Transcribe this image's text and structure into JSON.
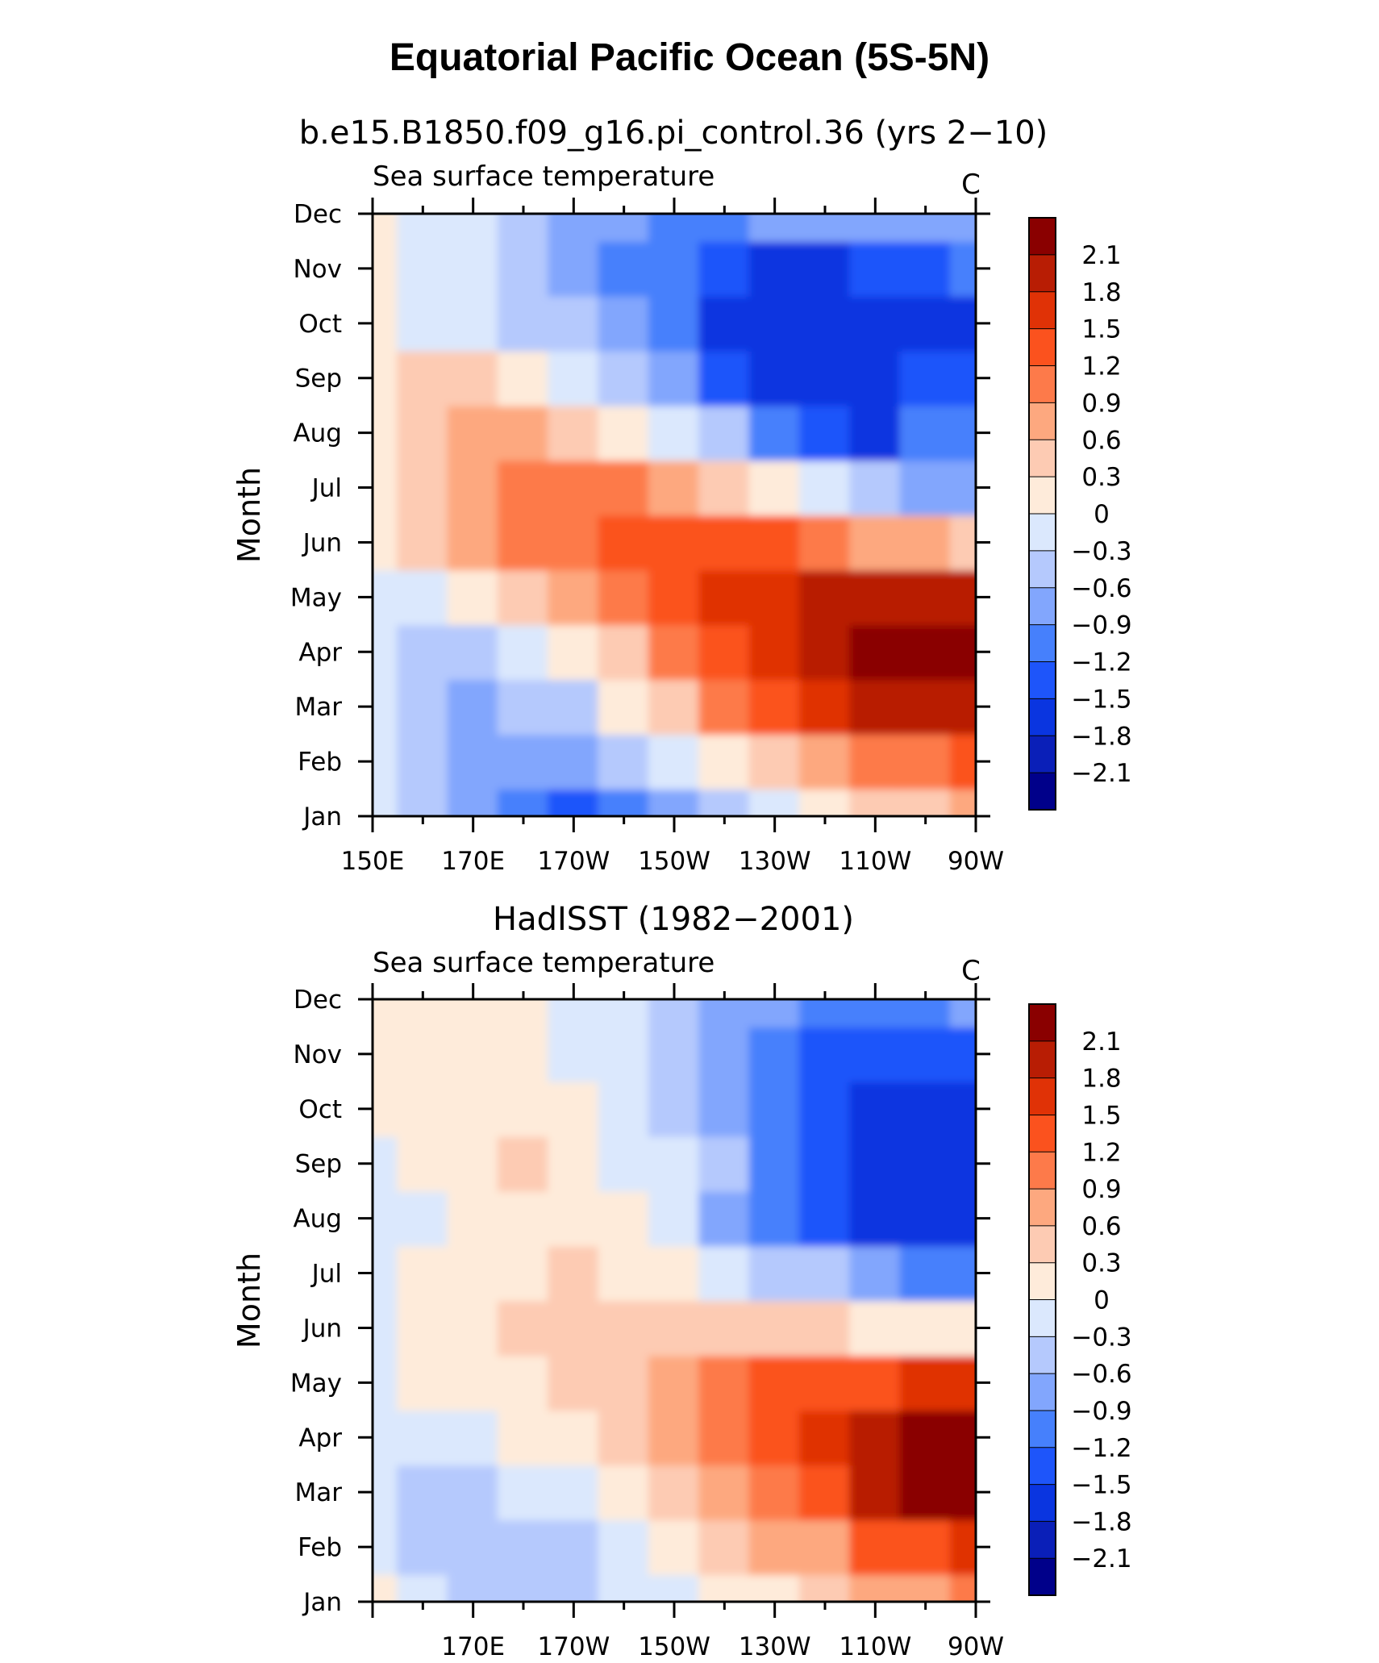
{
  "title": "Equatorial Pacific Ocean (5S-5N)",
  "chart_data": [
    {
      "type": "heatmap",
      "title": "b.e15.B1850.f09_g16.pi_control.36 (yrs 2−10)",
      "subtitle": "Sea surface temperature",
      "units": "C",
      "ylabel": "Month",
      "x": [
        150,
        160,
        170,
        180,
        190,
        200,
        210,
        220,
        230,
        240,
        250,
        260,
        270
      ],
      "y": [
        "Jan",
        "Feb",
        "Mar",
        "Apr",
        "May",
        "Jun",
        "Jul",
        "Aug",
        "Sep",
        "Oct",
        "Nov",
        "Dec"
      ],
      "xticks": [
        "150E",
        "170E",
        "170W",
        "150W",
        "130W",
        "110W",
        "90W"
      ],
      "values": [
        [
          -0.3,
          -0.5,
          -0.8,
          -1.0,
          -1.3,
          -1.0,
          -0.7,
          -0.45,
          -0.1,
          0.2,
          0.35,
          0.55,
          0.7
        ],
        [
          -0.3,
          -0.6,
          -0.9,
          -0.9,
          -0.8,
          -0.6,
          -0.25,
          0.15,
          0.5,
          0.75,
          0.9,
          1.05,
          1.2
        ],
        [
          -0.3,
          -0.6,
          -0.65,
          -0.55,
          -0.35,
          0.0,
          0.45,
          0.9,
          1.3,
          1.7,
          1.9,
          2.05,
          2.0
        ],
        [
          -0.2,
          -0.5,
          -0.4,
          -0.2,
          0.15,
          0.5,
          0.9,
          1.3,
          1.65,
          1.9,
          2.15,
          2.3,
          2.3
        ],
        [
          -0.1,
          -0.2,
          0.05,
          0.35,
          0.7,
          1.05,
          1.35,
          1.55,
          1.7,
          1.85,
          1.9,
          1.95,
          1.95
        ],
        [
          0.1,
          0.3,
          0.6,
          0.9,
          1.1,
          1.25,
          1.35,
          1.3,
          1.2,
          0.95,
          0.8,
          0.7,
          0.5
        ],
        [
          0.2,
          0.45,
          0.8,
          1.0,
          1.0,
          0.9,
          0.7,
          0.4,
          0.05,
          -0.3,
          -0.5,
          -0.7,
          -0.8
        ],
        [
          0.2,
          0.5,
          0.6,
          0.6,
          0.35,
          0.05,
          -0.3,
          -0.6,
          -1.1,
          -1.5,
          -1.7,
          -1.2,
          -1.1
        ],
        [
          0.05,
          0.3,
          0.3,
          0.15,
          -0.2,
          -0.55,
          -0.9,
          -1.3,
          -1.65,
          -1.8,
          -1.75,
          -1.5,
          -1.4
        ],
        [
          0.0,
          -0.1,
          -0.2,
          -0.35,
          -0.6,
          -0.9,
          -1.2,
          -1.55,
          -1.8,
          -1.75,
          -1.75,
          -1.7,
          -1.6
        ],
        [
          0.15,
          -0.05,
          -0.2,
          -0.4,
          -0.7,
          -1.0,
          -1.2,
          -1.4,
          -1.55,
          -1.55,
          -1.5,
          -1.3,
          -1.1
        ],
        [
          0.1,
          -0.1,
          -0.2,
          -0.4,
          -0.65,
          -0.85,
          -1.0,
          -1.0,
          -0.9,
          -0.8,
          -0.75,
          -0.7,
          -0.7
        ]
      ],
      "levels": [
        -2.1,
        -1.8,
        -1.5,
        -1.2,
        -0.9,
        -0.6,
        -0.3,
        0,
        0.3,
        0.6,
        0.9,
        1.2,
        1.5,
        1.8,
        2.1
      ],
      "colorbar_labels": [
        "2.1",
        "1.8",
        "1.5",
        "1.2",
        "0.9",
        "0.6",
        "0.3",
        "0",
        "−0.3",
        "−0.6",
        "−0.9",
        "−1.2",
        "−1.5",
        "−1.8",
        "−2.1"
      ]
    },
    {
      "type": "heatmap",
      "title": "HadISST (1982−2001)",
      "subtitle": "Sea surface temperature",
      "units": "C",
      "ylabel": "Month",
      "x": [
        150,
        160,
        170,
        180,
        190,
        200,
        210,
        220,
        230,
        240,
        250,
        260,
        270
      ],
      "y": [
        "Jan",
        "Feb",
        "Mar",
        "Apr",
        "May",
        "Jun",
        "Jul",
        "Aug",
        "Sep",
        "Oct",
        "Nov",
        "Dec"
      ],
      "xticks": [
        "170E",
        "170W",
        "150W",
        "130W",
        "110W",
        "90W"
      ],
      "values": [
        [
          0.05,
          -0.2,
          -0.4,
          -0.5,
          -0.5,
          -0.3,
          -0.15,
          0.0,
          0.15,
          0.3,
          0.6,
          0.85,
          1.0
        ],
        [
          -0.1,
          -0.4,
          -0.5,
          -0.55,
          -0.45,
          -0.2,
          0.1,
          0.35,
          0.6,
          0.85,
          1.2,
          1.4,
          1.6
        ],
        [
          -0.1,
          -0.35,
          -0.4,
          -0.3,
          -0.05,
          0.25,
          0.45,
          0.75,
          1.1,
          1.4,
          1.9,
          2.15,
          2.3
        ],
        [
          -0.1,
          -0.25,
          -0.1,
          0.1,
          0.25,
          0.45,
          0.65,
          0.95,
          1.3,
          1.6,
          1.9,
          2.2,
          2.3
        ],
        [
          -0.1,
          0.05,
          0.15,
          0.2,
          0.35,
          0.55,
          0.8,
          1.0,
          1.2,
          1.3,
          1.4,
          1.5,
          1.5
        ],
        [
          -0.05,
          0.1,
          0.2,
          0.3,
          0.4,
          0.5,
          0.5,
          0.45,
          0.4,
          0.35,
          0.2,
          0.15,
          0.0
        ],
        [
          -0.1,
          0.1,
          0.15,
          0.2,
          0.3,
          0.2,
          0.05,
          -0.1,
          -0.35,
          -0.6,
          -0.9,
          -1.0,
          -1.05
        ],
        [
          -0.15,
          -0.05,
          0.1,
          0.15,
          0.1,
          0.0,
          -0.3,
          -0.7,
          -1.0,
          -1.3,
          -1.6,
          -1.6,
          -1.55
        ],
        [
          -0.15,
          0.05,
          0.2,
          0.35,
          0.15,
          -0.05,
          -0.2,
          -0.55,
          -0.95,
          -1.3,
          -1.6,
          -1.7,
          -1.65
        ],
        [
          0.0,
          0.05,
          0.15,
          0.15,
          0.0,
          -0.2,
          -0.45,
          -0.8,
          -1.1,
          -1.4,
          -1.55,
          -1.7,
          -1.65
        ],
        [
          0.05,
          0.1,
          0.15,
          0.1,
          -0.1,
          -0.3,
          -0.55,
          -0.85,
          -1.0,
          -1.25,
          -1.45,
          -1.5,
          -1.45
        ],
        [
          0.05,
          0.1,
          0.1,
          0.05,
          -0.1,
          -0.3,
          -0.5,
          -0.65,
          -0.8,
          -1.0,
          -1.15,
          -1.1,
          -0.9
        ]
      ],
      "levels": [
        -2.1,
        -1.8,
        -1.5,
        -1.2,
        -0.9,
        -0.6,
        -0.3,
        0,
        0.3,
        0.6,
        0.9,
        1.2,
        1.5,
        1.8,
        2.1
      ],
      "colorbar_labels": [
        "2.1",
        "1.8",
        "1.5",
        "1.2",
        "0.9",
        "0.6",
        "0.3",
        "0",
        "−0.3",
        "−0.6",
        "−0.9",
        "−1.2",
        "−1.5",
        "−1.8",
        "−2.1"
      ]
    }
  ],
  "colors": [
    "#00008a",
    "#0a1fb8",
    "#0a35e0",
    "#1e55fa",
    "#4680fc",
    "#82a6fd",
    "#b5c9fd",
    "#dbe8fd",
    "#feebda",
    "#fdcbb3",
    "#fda87f",
    "#fd7a4a",
    "#fb521e",
    "#e03206",
    "#b81d04",
    "#8a0000"
  ]
}
